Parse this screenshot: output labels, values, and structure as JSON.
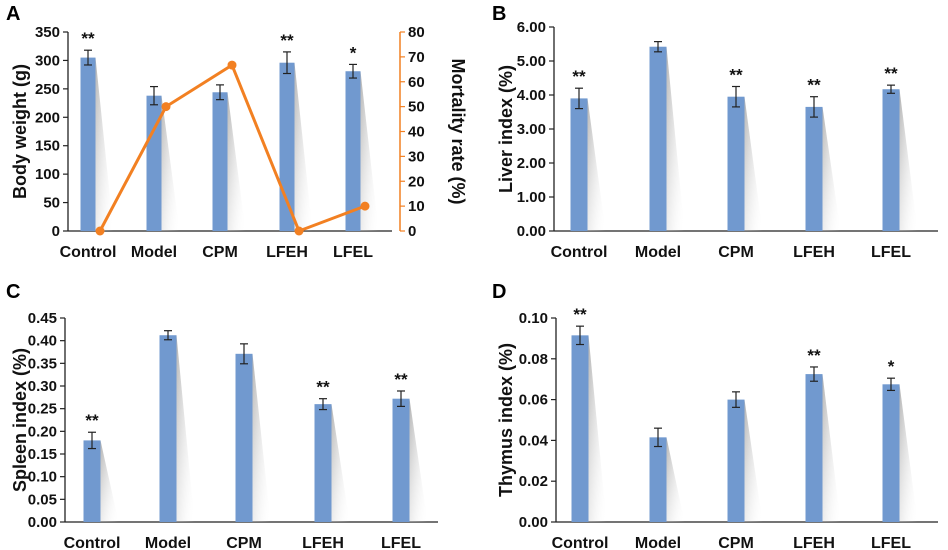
{
  "colors": {
    "bar": "#7199cf",
    "line": "#f28022",
    "axis": "#222222",
    "orange_axis": "#f28022"
  },
  "chart_data": [
    {
      "panel": "A",
      "type": "bar+line",
      "categories": [
        "Control",
        "Model",
        "CPM",
        "LFEH",
        "LFEL"
      ],
      "values": [
        305,
        238,
        244,
        296,
        281
      ],
      "errors": [
        13,
        16,
        13,
        19,
        12
      ],
      "significance": [
        "**",
        "",
        "",
        "**",
        "*"
      ],
      "ylabel": "Body weight (g)",
      "ylim": [
        0,
        350
      ],
      "yticks": [
        "0",
        "50",
        "100",
        "150",
        "200",
        "250",
        "300",
        "350"
      ],
      "secondary": {
        "type": "line",
        "name": "Mortality rate",
        "values": [
          0,
          50,
          66.7,
          0,
          10
        ],
        "ylabel": "Mortality rate (%)",
        "ylim": [
          0,
          80
        ],
        "yticks": [
          "0",
          "10",
          "20",
          "30",
          "40",
          "50",
          "60",
          "70",
          "80"
        ]
      }
    },
    {
      "panel": "B",
      "type": "bar",
      "categories": [
        "Control",
        "Model",
        "CPM",
        "LFEH",
        "LFEL"
      ],
      "values": [
        3.9,
        5.42,
        3.95,
        3.65,
        4.17
      ],
      "errors": [
        0.3,
        0.15,
        0.3,
        0.3,
        0.12
      ],
      "significance": [
        "**",
        "",
        "**",
        "**",
        "**"
      ],
      "ylabel": "Liver index (%)",
      "ylim": [
        0,
        6
      ],
      "yticks": [
        "0.00",
        "1.00",
        "2.00",
        "3.00",
        "4.00",
        "5.00",
        "6.00"
      ]
    },
    {
      "panel": "C",
      "type": "bar",
      "categories": [
        "Control",
        "Model",
        "CPM",
        "LFEH",
        "LFEL"
      ],
      "values": [
        0.18,
        0.412,
        0.371,
        0.26,
        0.272
      ],
      "errors": [
        0.018,
        0.01,
        0.022,
        0.012,
        0.017
      ],
      "significance": [
        "**",
        "",
        "",
        "**",
        "**"
      ],
      "ylabel": "Spleen index (%)",
      "ylim": [
        0,
        0.45
      ],
      "yticks": [
        "0.00",
        "0.05",
        "0.10",
        "0.15",
        "0.20",
        "0.25",
        "0.30",
        "0.35",
        "0.40",
        "0.45"
      ]
    },
    {
      "panel": "D",
      "type": "bar",
      "categories": [
        "Control",
        "Model",
        "CPM",
        "LFEH",
        "LFEL"
      ],
      "values": [
        0.0915,
        0.0415,
        0.06,
        0.0725,
        0.0675
      ],
      "errors": [
        0.0045,
        0.0045,
        0.0038,
        0.0035,
        0.003
      ],
      "significance": [
        "**",
        "",
        "",
        "**",
        "*"
      ],
      "ylabel": "Thymus index (%)",
      "ylim": [
        0,
        0.1
      ],
      "yticks": [
        "0.00",
        "0.02",
        "0.04",
        "0.06",
        "0.08",
        "0.10"
      ]
    }
  ]
}
